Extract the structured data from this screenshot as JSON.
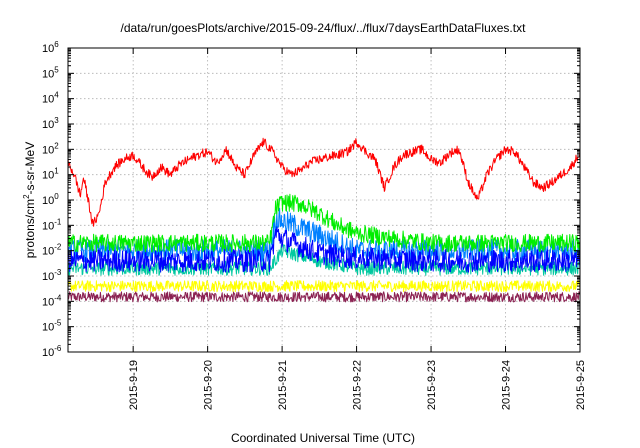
{
  "chart_data": {
    "type": "line",
    "title": "/data/run/goesPlots/archive/2015-09-24/flux/../flux/7daysEarthDataFluxes.txt",
    "xlabel": "Coordinated Universal Time (UTC)",
    "ylabel": "protons/cm2-s-sr-MeV",
    "ylabel_base": "protons/cm",
    "ylabel_sup": "2",
    "ylabel_rest": "-s-sr-MeV",
    "x_scale": "time",
    "x_range": [
      "2015-09-18 03:00",
      "2015-09-25 00:00"
    ],
    "x_ticks": [
      "2015-9-19",
      "2015-9-20",
      "2015-9-21",
      "2015-9-22",
      "2015-9-23",
      "2015-9-24",
      "2015-9-25"
    ],
    "y_scale": "log",
    "y_range": [
      1e-06,
      1000000.0
    ],
    "y_ticks": [
      "10^-6",
      "10^-5",
      "10^-4",
      "10^-3",
      "10^-2",
      "10^-1",
      "10^0",
      "10^1",
      "10^2",
      "10^3",
      "10^4",
      "10^5",
      "10^6"
    ],
    "grid": true,
    "legend": "none",
    "series": [
      {
        "color": "#ff0000",
        "points": [
          [
            "2015-09-18 03:00",
            30
          ],
          [
            "2015-09-18 05:00",
            10
          ],
          [
            "2015-09-18 07:00",
            1.5
          ],
          [
            "2015-09-18 08:00",
            8
          ],
          [
            "2015-09-18 10:00",
            0.5
          ],
          [
            "2015-09-18 11:00",
            0.1
          ],
          [
            "2015-09-18 13:00",
            0.3
          ],
          [
            "2015-09-18 15:00",
            5
          ],
          [
            "2015-09-18 18:00",
            20
          ],
          [
            "2015-09-18 21:00",
            40
          ],
          [
            "2015-09-19 00:00",
            60
          ],
          [
            "2015-09-19 03:00",
            20
          ],
          [
            "2015-09-19 06:00",
            8
          ],
          [
            "2015-09-19 09:00",
            20
          ],
          [
            "2015-09-19 12:00",
            10
          ],
          [
            "2015-09-19 15:00",
            25
          ],
          [
            "2015-09-19 18:00",
            40
          ],
          [
            "2015-09-19 21:00",
            60
          ],
          [
            "2015-09-20 00:00",
            80
          ],
          [
            "2015-09-20 03:00",
            30
          ],
          [
            "2015-09-20 06:00",
            100
          ],
          [
            "2015-09-20 09:00",
            20
          ],
          [
            "2015-09-20 12:00",
            10
          ],
          [
            "2015-09-20 15:00",
            60
          ],
          [
            "2015-09-20 18:00",
            200
          ],
          [
            "2015-09-20 21:00",
            80
          ],
          [
            "2015-09-21 00:00",
            20
          ],
          [
            "2015-09-21 03:00",
            10
          ],
          [
            "2015-09-21 06:00",
            15
          ],
          [
            "2015-09-21 09:00",
            30
          ],
          [
            "2015-09-21 12:00",
            40
          ],
          [
            "2015-09-21 15:00",
            50
          ],
          [
            "2015-09-21 18:00",
            60
          ],
          [
            "2015-09-21 21:00",
            80
          ],
          [
            "2015-09-22 00:00",
            200
          ],
          [
            "2015-09-22 03:00",
            80
          ],
          [
            "2015-09-22 06:00",
            40
          ],
          [
            "2015-09-22 09:00",
            3
          ],
          [
            "2015-09-22 12:00",
            20
          ],
          [
            "2015-09-22 15:00",
            60
          ],
          [
            "2015-09-22 18:00",
            80
          ],
          [
            "2015-09-22 21:00",
            100
          ],
          [
            "2015-09-23 00:00",
            40
          ],
          [
            "2015-09-23 03:00",
            30
          ],
          [
            "2015-09-23 06:00",
            70
          ],
          [
            "2015-09-23 09:00",
            100
          ],
          [
            "2015-09-23 12:00",
            5
          ],
          [
            "2015-09-23 15:00",
            1
          ],
          [
            "2015-09-23 18:00",
            10
          ],
          [
            "2015-09-23 21:00",
            40
          ],
          [
            "2015-09-24 00:00",
            100
          ],
          [
            "2015-09-24 03:00",
            80
          ],
          [
            "2015-09-24 06:00",
            20
          ],
          [
            "2015-09-24 09:00",
            5
          ],
          [
            "2015-09-24 12:00",
            3
          ],
          [
            "2015-09-24 15:00",
            5
          ],
          [
            "2015-09-24 18:00",
            10
          ],
          [
            "2015-09-24 21:00",
            20
          ],
          [
            "2015-09-25 00:00",
            70
          ]
        ]
      },
      {
        "color": "#00ee00",
        "points": [
          [
            "2015-09-18 03:00",
            0.02
          ],
          [
            "2015-09-18 12:00",
            0.02
          ],
          [
            "2015-09-19 00:00",
            0.02
          ],
          [
            "2015-09-19 12:00",
            0.02
          ],
          [
            "2015-09-20 00:00",
            0.02
          ],
          [
            "2015-09-20 12:00",
            0.02
          ],
          [
            "2015-09-20 20:00",
            0.02
          ],
          [
            "2015-09-20 22:00",
            0.5
          ],
          [
            "2015-09-21 00:00",
            0.8
          ],
          [
            "2015-09-21 06:00",
            0.7
          ],
          [
            "2015-09-21 12:00",
            0.3
          ],
          [
            "2015-09-21 18:00",
            0.1
          ],
          [
            "2015-09-22 00:00",
            0.05
          ],
          [
            "2015-09-22 12:00",
            0.03
          ],
          [
            "2015-09-23 00:00",
            0.02
          ],
          [
            "2015-09-23 12:00",
            0.02
          ],
          [
            "2015-09-24 00:00",
            0.02
          ],
          [
            "2015-09-24 12:00",
            0.02
          ],
          [
            "2015-09-25 00:00",
            0.02
          ]
        ]
      },
      {
        "color": "#0080ff",
        "points": [
          [
            "2015-09-18 03:00",
            0.01
          ],
          [
            "2015-09-18 12:00",
            0.01
          ],
          [
            "2015-09-19 00:00",
            0.01
          ],
          [
            "2015-09-19 12:00",
            0.01
          ],
          [
            "2015-09-20 00:00",
            0.01
          ],
          [
            "2015-09-20 12:00",
            0.01
          ],
          [
            "2015-09-20 20:00",
            0.01
          ],
          [
            "2015-09-20 22:00",
            0.2
          ],
          [
            "2015-09-21 00:00",
            0.15
          ],
          [
            "2015-09-21 06:00",
            0.08
          ],
          [
            "2015-09-21 12:00",
            0.04
          ],
          [
            "2015-09-21 18:00",
            0.02
          ],
          [
            "2015-09-22 00:00",
            0.01
          ],
          [
            "2015-09-23 00:00",
            0.01
          ],
          [
            "2015-09-24 00:00",
            0.01
          ],
          [
            "2015-09-25 00:00",
            0.01
          ]
        ]
      },
      {
        "color": "#0000ff",
        "points": [
          [
            "2015-09-18 03:00",
            0.004
          ],
          [
            "2015-09-19 00:00",
            0.004
          ],
          [
            "2015-09-20 00:00",
            0.004
          ],
          [
            "2015-09-20 20:00",
            0.004
          ],
          [
            "2015-09-20 22:00",
            0.05
          ],
          [
            "2015-09-21 00:00",
            0.03
          ],
          [
            "2015-09-21 06:00",
            0.015
          ],
          [
            "2015-09-21 12:00",
            0.008
          ],
          [
            "2015-09-22 00:00",
            0.005
          ],
          [
            "2015-09-23 00:00",
            0.004
          ],
          [
            "2015-09-24 00:00",
            0.004
          ],
          [
            "2015-09-25 00:00",
            0.004
          ]
        ]
      },
      {
        "color": "#00c8a0",
        "points": [
          [
            "2015-09-18 03:00",
            0.002
          ],
          [
            "2015-09-19 00:00",
            0.002
          ],
          [
            "2015-09-20 00:00",
            0.002
          ],
          [
            "2015-09-20 20:00",
            0.002
          ],
          [
            "2015-09-21 00:00",
            0.01
          ],
          [
            "2015-09-21 12:00",
            0.004
          ],
          [
            "2015-09-22 00:00",
            0.002
          ],
          [
            "2015-09-23 00:00",
            0.002
          ],
          [
            "2015-09-24 00:00",
            0.002
          ],
          [
            "2015-09-25 00:00",
            0.002
          ]
        ]
      },
      {
        "color": "#ffff00",
        "points": [
          [
            "2015-09-18 03:00",
            0.0004
          ],
          [
            "2015-09-19 00:00",
            0.0004
          ],
          [
            "2015-09-20 00:00",
            0.0004
          ],
          [
            "2015-09-21 00:00",
            0.0004
          ],
          [
            "2015-09-22 00:00",
            0.0004
          ],
          [
            "2015-09-23 00:00",
            0.0004
          ],
          [
            "2015-09-24 00:00",
            0.0004
          ],
          [
            "2015-09-25 00:00",
            0.0004
          ]
        ]
      },
      {
        "color": "#8b2252",
        "points": [
          [
            "2015-09-18 03:00",
            0.00015
          ],
          [
            "2015-09-19 00:00",
            0.00015
          ],
          [
            "2015-09-20 00:00",
            0.00015
          ],
          [
            "2015-09-21 00:00",
            0.00015
          ],
          [
            "2015-09-22 00:00",
            0.00015
          ],
          [
            "2015-09-23 00:00",
            0.00015
          ],
          [
            "2015-09-24 00:00",
            0.00015
          ],
          [
            "2015-09-25 00:00",
            0.00015
          ]
        ]
      }
    ]
  }
}
